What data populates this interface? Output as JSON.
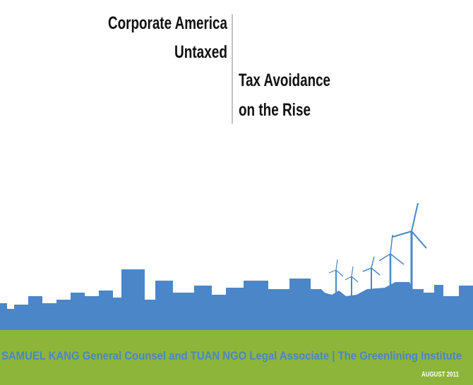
{
  "header": {
    "title": [
      "Corporate America",
      "Untaxed"
    ],
    "subtitle": [
      "Tax Avoidance",
      "on the Rise"
    ]
  },
  "footer": {
    "byline": "SAMUEL KANG General Counsel and TUAN NGO Legal Associate | The Greenlining Institute",
    "date": "AUGUST 2011"
  }
}
